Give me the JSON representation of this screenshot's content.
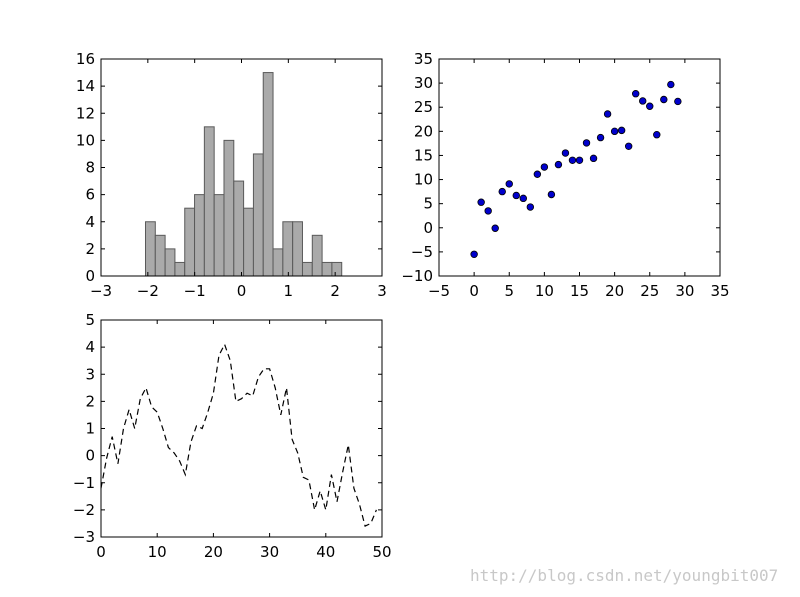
{
  "chart_data": [
    {
      "type": "bar",
      "title": "",
      "xlabel": "",
      "ylabel": "",
      "xlim": [
        -3,
        3
      ],
      "ylim": [
        0,
        16
      ],
      "xticks": [
        "−3",
        "−2",
        "−1",
        "0",
        "1",
        "2",
        "3"
      ],
      "yticks": [
        "0",
        "2",
        "4",
        "6",
        "8",
        "10",
        "12",
        "14",
        "16"
      ],
      "bin_start": -2.05,
      "bin_width": 0.2095,
      "values": [
        4,
        3,
        2,
        1,
        5,
        6,
        11,
        6,
        10,
        7,
        5,
        9,
        15,
        2,
        4,
        4,
        1,
        3,
        1,
        1
      ],
      "color": "#aaaaaa",
      "grid": false
    },
    {
      "type": "scatter",
      "title": "",
      "xlabel": "",
      "ylabel": "",
      "xlim": [
        -5,
        35
      ],
      "ylim": [
        -10,
        35
      ],
      "xticks": [
        "−5",
        "0",
        "5",
        "10",
        "15",
        "20",
        "25",
        "30",
        "35"
      ],
      "yticks": [
        "−10",
        "−5",
        "0",
        "5",
        "10",
        "15",
        "20",
        "25",
        "30",
        "35"
      ],
      "x": [
        0,
        1,
        2,
        3,
        4,
        5,
        6,
        7,
        8,
        9,
        10,
        11,
        12,
        13,
        14,
        15,
        16,
        17,
        18,
        19,
        20,
        21,
        22,
        23,
        24,
        25,
        26,
        27,
        28,
        29
      ],
      "y": [
        -5.5,
        5.3,
        3.5,
        -0.1,
        7.5,
        9.1,
        6.7,
        6.1,
        4.3,
        11.1,
        12.6,
        6.9,
        13.1,
        15.5,
        14.0,
        14.0,
        17.6,
        14.4,
        18.7,
        23.6,
        20.0,
        20.2,
        16.9,
        27.8,
        26.3,
        25.2,
        19.3,
        26.6,
        29.7,
        26.2
      ],
      "color": "#0000cc",
      "grid": false
    },
    {
      "type": "line",
      "title": "",
      "xlabel": "",
      "ylabel": "",
      "xlim": [
        0,
        50
      ],
      "ylim": [
        -3,
        5
      ],
      "xticks": [
        "0",
        "10",
        "20",
        "30",
        "40",
        "50"
      ],
      "yticks": [
        "−3",
        "−2",
        "−1",
        "0",
        "1",
        "2",
        "3",
        "4",
        "5"
      ],
      "x": [
        0,
        1,
        2,
        3,
        4,
        5,
        6,
        7,
        8,
        9,
        10,
        11,
        12,
        13,
        14,
        15,
        16,
        17,
        18,
        19,
        20,
        21,
        22,
        23,
        24,
        25,
        26,
        27,
        28,
        29,
        30,
        31,
        32,
        33,
        34,
        35,
        36,
        37,
        38,
        39,
        40,
        41,
        42,
        43,
        44,
        45,
        46,
        47,
        48,
        49
      ],
      "y": [
        -1.2,
        -0.1,
        0.7,
        -0.3,
        1.0,
        1.7,
        1.0,
        2.1,
        2.5,
        1.8,
        1.6,
        1.0,
        0.3,
        0.1,
        -0.2,
        -0.7,
        0.5,
        1.1,
        1.0,
        1.6,
        2.3,
        3.7,
        4.1,
        3.5,
        2.0,
        2.1,
        2.3,
        2.2,
        2.9,
        3.2,
        3.2,
        2.5,
        1.5,
        2.5,
        0.6,
        0.1,
        -0.8,
        -0.9,
        -2.0,
        -1.3,
        -2.0,
        -0.7,
        -1.7,
        -0.6,
        0.4,
        -1.2,
        -1.8,
        -2.6,
        -2.5,
        -2.0
      ],
      "style": "dashed",
      "color": "#000000",
      "grid": false
    }
  ],
  "watermark": "http://blog.csdn.net/youngbit007"
}
